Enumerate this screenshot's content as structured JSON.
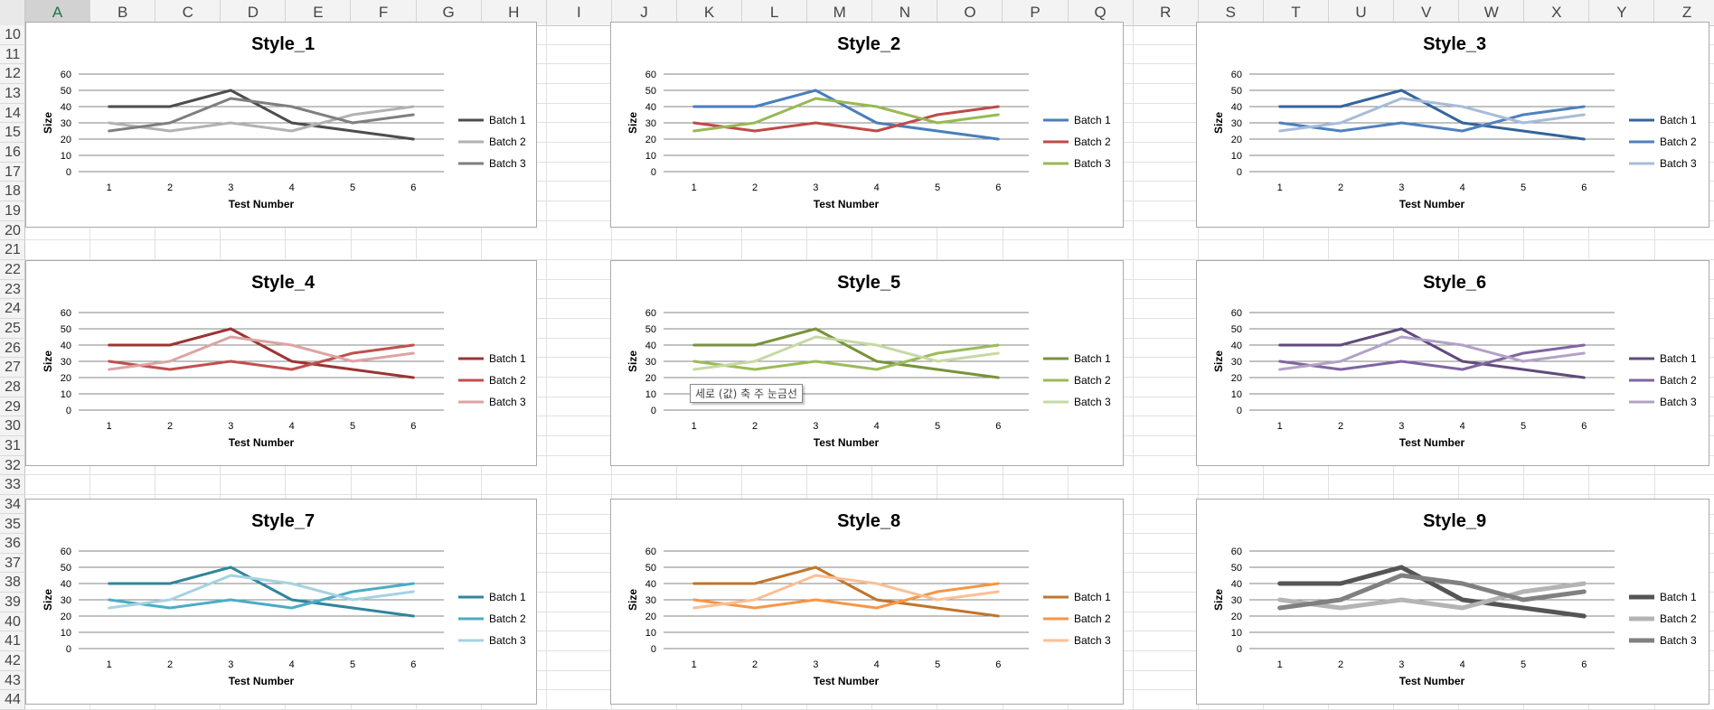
{
  "sheet": {
    "columns": [
      "A",
      "B",
      "C",
      "D",
      "E",
      "F",
      "G",
      "H",
      "I",
      "J",
      "K",
      "L",
      "M",
      "N",
      "O",
      "P",
      "Q",
      "R",
      "S",
      "T",
      "U",
      "V",
      "W",
      "X",
      "Y",
      "Z"
    ],
    "selected_column": "A",
    "rows": [
      "10",
      "11",
      "12",
      "13",
      "14",
      "15",
      "16",
      "17",
      "18",
      "19",
      "20",
      "21",
      "22",
      "23",
      "24",
      "25",
      "26",
      "27",
      "28",
      "29",
      "30",
      "31",
      "32",
      "33",
      "34",
      "35",
      "36",
      "37",
      "38",
      "39",
      "40",
      "41",
      "42",
      "43",
      "44"
    ]
  },
  "tooltip": {
    "text": "세로 (값) 축 주 눈금선"
  },
  "chart_data": [
    {
      "type": "line",
      "title": "Style_1",
      "xlabel": "Test Number",
      "ylabel": "Size",
      "categories": [
        "1",
        "2",
        "3",
        "4",
        "5",
        "6"
      ],
      "yticks": [
        "0",
        "10",
        "20",
        "30",
        "40",
        "50",
        "60"
      ],
      "ylim": [
        0,
        60
      ],
      "grid": true,
      "legend": "right",
      "series": [
        {
          "name": "Batch 1",
          "values": [
            40,
            40,
            50,
            30,
            25,
            20
          ],
          "color": "#4d4d4d"
        },
        {
          "name": "Batch 2",
          "values": [
            30,
            25,
            30,
            25,
            35,
            40
          ],
          "color": "#b2b2b2"
        },
        {
          "name": "Batch 3",
          "values": [
            25,
            30,
            45,
            40,
            30,
            35
          ],
          "color": "#7f7f7f"
        }
      ]
    },
    {
      "type": "line",
      "title": "Style_2",
      "xlabel": "Test Number",
      "ylabel": "Size",
      "categories": [
        "1",
        "2",
        "3",
        "4",
        "5",
        "6"
      ],
      "yticks": [
        "0",
        "10",
        "20",
        "30",
        "40",
        "50",
        "60"
      ],
      "ylim": [
        0,
        60
      ],
      "grid": true,
      "legend": "right",
      "series": [
        {
          "name": "Batch 1",
          "values": [
            40,
            40,
            50,
            30,
            25,
            20
          ],
          "color": "#4a7ebb"
        },
        {
          "name": "Batch 2",
          "values": [
            30,
            25,
            30,
            25,
            35,
            40
          ],
          "color": "#be4b48"
        },
        {
          "name": "Batch 3",
          "values": [
            25,
            30,
            45,
            40,
            30,
            35
          ],
          "color": "#98b954"
        }
      ]
    },
    {
      "type": "line",
      "title": "Style_3",
      "xlabel": "Test Number",
      "ylabel": "Size",
      "categories": [
        "1",
        "2",
        "3",
        "4",
        "5",
        "6"
      ],
      "yticks": [
        "0",
        "10",
        "20",
        "30",
        "40",
        "50",
        "60"
      ],
      "ylim": [
        0,
        60
      ],
      "grid": true,
      "legend": "right",
      "series": [
        {
          "name": "Batch 1",
          "values": [
            40,
            40,
            50,
            30,
            25,
            20
          ],
          "color": "#34649c"
        },
        {
          "name": "Batch 2",
          "values": [
            30,
            25,
            30,
            25,
            35,
            40
          ],
          "color": "#4f81bd"
        },
        {
          "name": "Batch 3",
          "values": [
            25,
            30,
            45,
            40,
            30,
            35
          ],
          "color": "#a7bcd9"
        }
      ]
    },
    {
      "type": "line",
      "title": "Style_4",
      "xlabel": "Test Number",
      "ylabel": "Size",
      "categories": [
        "1",
        "2",
        "3",
        "4",
        "5",
        "6"
      ],
      "yticks": [
        "0",
        "10",
        "20",
        "30",
        "40",
        "50",
        "60"
      ],
      "ylim": [
        0,
        60
      ],
      "grid": true,
      "legend": "right",
      "series": [
        {
          "name": "Batch 1",
          "values": [
            40,
            40,
            50,
            30,
            25,
            20
          ],
          "color": "#9b3533"
        },
        {
          "name": "Batch 2",
          "values": [
            30,
            25,
            30,
            25,
            35,
            40
          ],
          "color": "#c0504d"
        },
        {
          "name": "Batch 3",
          "values": [
            25,
            30,
            45,
            40,
            30,
            35
          ],
          "color": "#dda4a3"
        }
      ]
    },
    {
      "type": "line",
      "title": "Style_5",
      "xlabel": "Test Number",
      "ylabel": "Size",
      "categories": [
        "1",
        "2",
        "3",
        "4",
        "5",
        "6"
      ],
      "yticks": [
        "0",
        "10",
        "20",
        "30",
        "40",
        "50",
        "60"
      ],
      "ylim": [
        0,
        60
      ],
      "grid": true,
      "legend": "right",
      "series": [
        {
          "name": "Batch 1",
          "values": [
            40,
            40,
            50,
            30,
            25,
            20
          ],
          "color": "#77933c"
        },
        {
          "name": "Batch 2",
          "values": [
            30,
            25,
            30,
            25,
            35,
            40
          ],
          "color": "#9bbb59"
        },
        {
          "name": "Batch 3",
          "values": [
            25,
            30,
            45,
            40,
            30,
            35
          ],
          "color": "#c7d9a4"
        }
      ]
    },
    {
      "type": "line",
      "title": "Style_6",
      "xlabel": "Test Number",
      "ylabel": "Size",
      "categories": [
        "1",
        "2",
        "3",
        "4",
        "5",
        "6"
      ],
      "yticks": [
        "0",
        "10",
        "20",
        "30",
        "40",
        "50",
        "60"
      ],
      "ylim": [
        0,
        60
      ],
      "grid": true,
      "legend": "right",
      "series": [
        {
          "name": "Batch 1",
          "values": [
            40,
            40,
            50,
            30,
            25,
            20
          ],
          "color": "#604a7b"
        },
        {
          "name": "Batch 2",
          "values": [
            30,
            25,
            30,
            25,
            35,
            40
          ],
          "color": "#8064a2"
        },
        {
          "name": "Batch 3",
          "values": [
            25,
            30,
            45,
            40,
            30,
            35
          ],
          "color": "#b3a2c7"
        }
      ]
    },
    {
      "type": "line",
      "title": "Style_7",
      "xlabel": "Test Number",
      "ylabel": "Size",
      "categories": [
        "1",
        "2",
        "3",
        "4",
        "5",
        "6"
      ],
      "yticks": [
        "0",
        "10",
        "20",
        "30",
        "40",
        "50",
        "60"
      ],
      "ylim": [
        0,
        60
      ],
      "grid": true,
      "legend": "right",
      "series": [
        {
          "name": "Batch 1",
          "values": [
            40,
            40,
            50,
            30,
            25,
            20
          ],
          "color": "#31859c"
        },
        {
          "name": "Batch 2",
          "values": [
            30,
            25,
            30,
            25,
            35,
            40
          ],
          "color": "#4bacc6"
        },
        {
          "name": "Batch 3",
          "values": [
            25,
            30,
            45,
            40,
            30,
            35
          ],
          "color": "#a5d3e1"
        }
      ]
    },
    {
      "type": "line",
      "title": "Style_8",
      "xlabel": "Test Number",
      "ylabel": "Size",
      "categories": [
        "1",
        "2",
        "3",
        "4",
        "5",
        "6"
      ],
      "yticks": [
        "0",
        "10",
        "20",
        "30",
        "40",
        "50",
        "60"
      ],
      "ylim": [
        0,
        60
      ],
      "grid": true,
      "legend": "right",
      "series": [
        {
          "name": "Batch 1",
          "values": [
            40,
            40,
            50,
            30,
            25,
            20
          ],
          "color": "#c0752e"
        },
        {
          "name": "Batch 2",
          "values": [
            30,
            25,
            30,
            25,
            35,
            40
          ],
          "color": "#f79646"
        },
        {
          "name": "Batch 3",
          "values": [
            25,
            30,
            45,
            40,
            30,
            35
          ],
          "color": "#fbbf94"
        }
      ]
    },
    {
      "type": "line",
      "title": "Style_9",
      "xlabel": "Test Number",
      "ylabel": "Size",
      "categories": [
        "1",
        "2",
        "3",
        "4",
        "5",
        "6"
      ],
      "yticks": [
        "0",
        "10",
        "20",
        "30",
        "40",
        "50",
        "60"
      ],
      "ylim": [
        0,
        60
      ],
      "grid": true,
      "legend": "right",
      "series": [
        {
          "name": "Batch 1",
          "values": [
            40,
            40,
            50,
            30,
            25,
            20
          ],
          "color": "#555555"
        },
        {
          "name": "Batch 2",
          "values": [
            30,
            25,
            30,
            25,
            35,
            40
          ],
          "color": "#b4b4b4"
        },
        {
          "name": "Batch 3",
          "values": [
            25,
            30,
            45,
            40,
            30,
            35
          ],
          "color": "#808080"
        }
      ]
    }
  ]
}
